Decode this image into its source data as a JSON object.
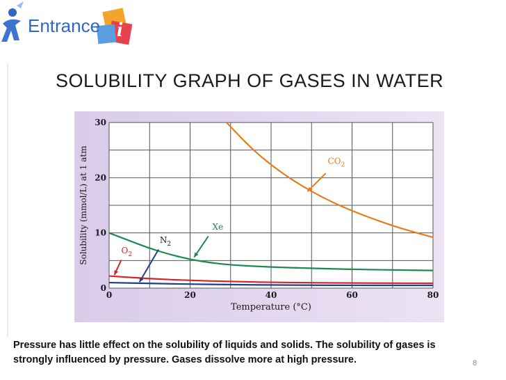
{
  "logo": {
    "text": "Entrance",
    "mark": "i"
  },
  "slide": {
    "title": "SOLUBILITY GRAPH OF GASES IN WATER",
    "caption_line1": "Pressure has little effect on the solubility of liquids and solids. The solubility of gases is",
    "caption_line2": "strongly influenced by pressure. Gases dissolve more at high pressure.",
    "page_number": "8"
  },
  "colors": {
    "panel": "#e7ddf1",
    "grid": "#555555",
    "co2": "#e67b1d",
    "xe": "#1b8a4e",
    "o2": "#d8232a",
    "n2": "#1f3f8c",
    "logo_blue": "#2f67c4"
  },
  "chart_data": {
    "type": "line",
    "xlabel": "Temperature (°C)",
    "ylabel": "Solubility (mmol/L) at 1 atm",
    "xlim": [
      0,
      80
    ],
    "ylim": [
      0,
      30
    ],
    "x_ticks": [
      0,
      20,
      40,
      60,
      80
    ],
    "x_tick_labels": [
      "0",
      "20",
      "40",
      "60",
      "80"
    ],
    "y_ticks": [
      0,
      10,
      20,
      30
    ],
    "y_tick_labels": [
      "0",
      "10",
      "20",
      "30"
    ],
    "grid": true,
    "series": [
      {
        "name": "CO2",
        "label_main": "CO",
        "label_sub": "2",
        "color": "#e67b1d",
        "x": [
          29,
          35,
          40,
          45,
          50,
          55,
          60,
          65,
          70,
          75,
          80
        ],
        "y": [
          30,
          25.4,
          22.3,
          19.7,
          17.5,
          15.6,
          14.0,
          12.6,
          11.3,
          10.2,
          9.2
        ],
        "label_at": [
          54,
          22.5
        ],
        "arrow_from": [
          53.5,
          20.8
        ],
        "arrow_to": [
          49,
          17.5
        ]
      },
      {
        "name": "Xe",
        "label_main": "Xe",
        "label_sub": "",
        "color": "#1b8a4e",
        "x": [
          0,
          5,
          10,
          15,
          20,
          25,
          30,
          40,
          50,
          60,
          70,
          80
        ],
        "y": [
          10,
          8.6,
          7.2,
          6.1,
          5.2,
          4.6,
          4.2,
          3.8,
          3.6,
          3.4,
          3.3,
          3.2
        ],
        "label_at": [
          25.5,
          10.6
        ],
        "arrow_from": [
          24.5,
          9.4
        ],
        "arrow_to": [
          21,
          5.6
        ]
      },
      {
        "name": "N2",
        "label_main": "N",
        "label_sub": "2",
        "color": "#1f3f8c",
        "x": [
          0,
          10,
          20,
          30,
          40,
          50,
          60,
          70,
          80
        ],
        "y": [
          1.0,
          0.85,
          0.72,
          0.63,
          0.57,
          0.53,
          0.51,
          0.5,
          0.5
        ],
        "label_at": [
          12.5,
          8.2
        ],
        "arrow_from": [
          12.2,
          7.0
        ],
        "arrow_to": [
          7.5,
          1.1
        ]
      },
      {
        "name": "O2",
        "label_main": "O",
        "label_sub": "2",
        "color": "#d8232a",
        "x": [
          0,
          10,
          20,
          30,
          40,
          50,
          60,
          70,
          80
        ],
        "y": [
          2.2,
          1.7,
          1.4,
          1.2,
          1.05,
          0.98,
          0.93,
          0.9,
          0.88
        ],
        "label_at": [
          3,
          6.3
        ],
        "arrow_from": [
          3,
          5.1
        ],
        "arrow_to": [
          1.3,
          2.4
        ]
      }
    ]
  }
}
